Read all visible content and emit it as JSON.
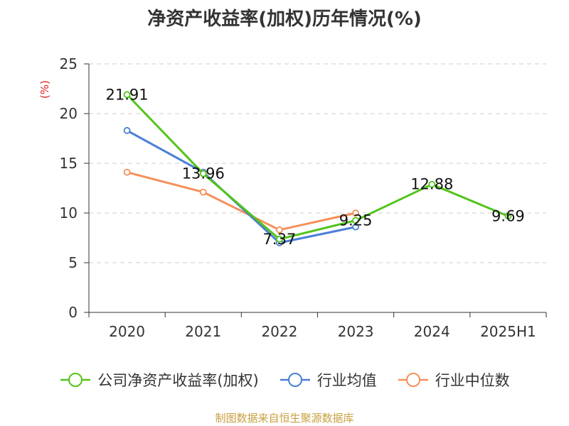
{
  "chart_data": {
    "type": "line",
    "title": "净资产收益率(加权)历年情况(%)",
    "ylabel": "(%)",
    "xlabel": "",
    "categories": [
      "2020",
      "2021",
      "2022",
      "2023",
      "2024",
      "2025H1"
    ],
    "ylim": [
      0,
      25
    ],
    "yticks": [
      0,
      5,
      10,
      15,
      20,
      25
    ],
    "grid": "horizontal dashed",
    "legend_position": "bottom",
    "series": [
      {
        "name": "公司净资产收益率(加权)",
        "color": "#52c41a",
        "values": [
          21.91,
          13.96,
          7.37,
          9.25,
          12.88,
          9.69
        ],
        "labels": [
          "21.91",
          "13.96",
          "7.37",
          "9.25",
          "12.88",
          "9.69"
        ]
      },
      {
        "name": "行业均值",
        "color": "#4a7fd6",
        "values": [
          18.3,
          14.1,
          7.0,
          8.6,
          null,
          null
        ]
      },
      {
        "name": "行业中位数",
        "color": "#f5905a",
        "values": [
          14.1,
          12.1,
          8.3,
          10.0,
          null,
          null
        ]
      }
    ]
  },
  "source_note": "制图数据来自恒生聚源数据库"
}
